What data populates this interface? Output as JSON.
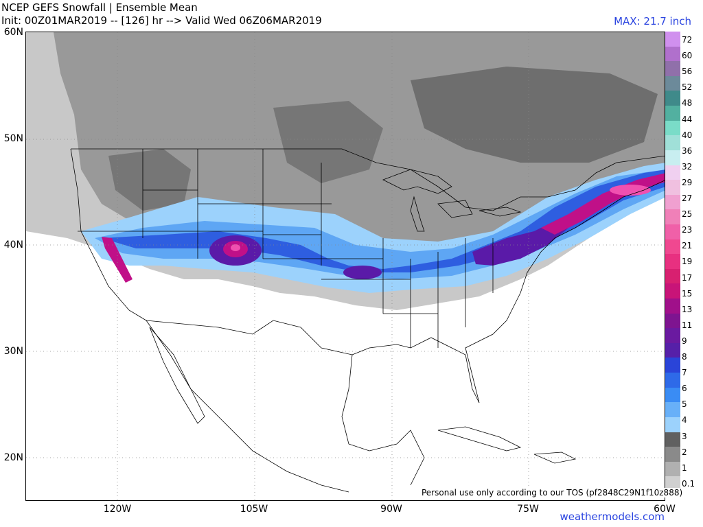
{
  "header": {
    "line1": "NCEP GEFS Snowfall | Ensemble Mean",
    "line2": "Init: 00Z01MAR2019 -- [126] hr --> Valid Wed 06Z06MAR2019",
    "max": "MAX: 21.7 inch"
  },
  "axes": {
    "lat_labels": [
      "60N",
      "50N",
      "40N",
      "30N",
      "20N"
    ],
    "lon_labels": [
      "120W",
      "105W",
      "90W",
      "75W",
      "60W"
    ]
  },
  "legend": {
    "levels": [
      "72",
      "60",
      "56",
      "52",
      "48",
      "44",
      "40",
      "36",
      "32",
      "29",
      "27",
      "25",
      "23",
      "21",
      "19",
      "17",
      "15",
      "13",
      "11",
      "9",
      "8",
      "7",
      "6",
      "5",
      "4",
      "3",
      "2",
      "1",
      "0.1"
    ],
    "colors": [
      "#d090ee",
      "#b070cc",
      "#9070aa",
      "#6c8a9a",
      "#3f8a8a",
      "#52b0a0",
      "#7adcc8",
      "#a0e0d8",
      "#c8eef0",
      "#f0d0f0",
      "#f0c0e0",
      "#f0a0d0",
      "#f080b8",
      "#f060a8",
      "#f04890",
      "#e83080",
      "#d82070",
      "#c81478",
      "#a0108a",
      "#7e1490",
      "#6a1aa0",
      "#5620a8",
      "#2a44d8",
      "#2e6ae8",
      "#3a8cf4",
      "#68b0f8",
      "#9cd2fc",
      "#606060",
      "#8a8a8a"
    ],
    "extra_colors": [
      "#b0b0b0",
      "#d0d0d0"
    ]
  },
  "footer": {
    "tos": "Personal use only according to our TOS (pf2848C29N1f10z888)",
    "brand": "weathermodels.com"
  },
  "map": {
    "colors": {
      "light_gray": "#c8c8c8",
      "mid_gray": "#999999",
      "dark_gray": "#6e6e6e",
      "blue_light": "#9cd2fc",
      "blue_mid": "#5ea6f4",
      "blue_dark": "#2e5ee0",
      "purple": "#5a1aa8",
      "magenta": "#c01088",
      "pink": "#f050b0"
    }
  }
}
